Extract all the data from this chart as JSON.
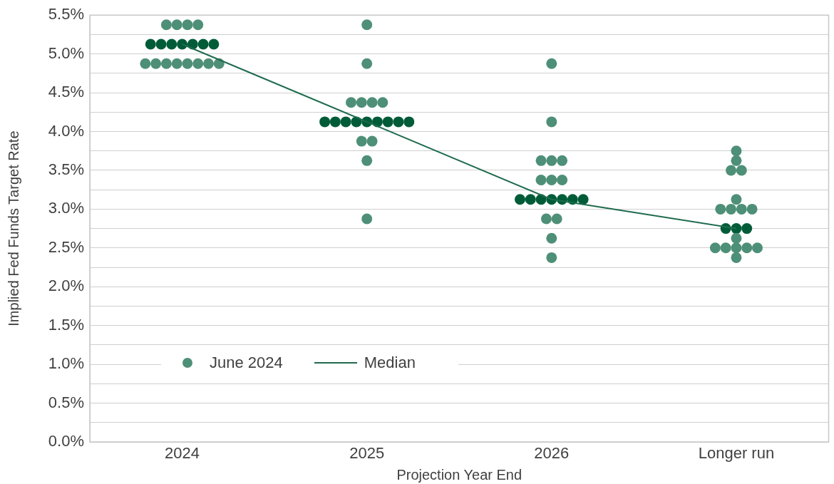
{
  "chart_data": {
    "type": "scatter",
    "xlabel": "Projection Year End",
    "ylabel": "Implied Fed Funds Target Rate",
    "categories": [
      "2024",
      "2025",
      "2026",
      "Longer run"
    ],
    "series": [
      {
        "name": "June 2024",
        "marker": "circle",
        "color": "#4e8f78",
        "values": [
          5.375,
          5.375,
          4.875,
          3.75
        ]
      },
      {
        "marker": "circle",
        "color": "#4e8f78",
        "values": [
          5.375,
          4.875,
          4.125,
          3.625
        ]
      },
      {
        "marker": "circle",
        "color": "#4e8f78",
        "values": [
          5.375,
          4.375,
          3.625,
          3.5
        ]
      },
      {
        "marker": "circle",
        "color": "#4e8f78",
        "values": [
          5.375,
          4.375,
          3.625,
          3.5
        ]
      },
      {
        "marker": "circle",
        "color": "#4e8f78",
        "values": [
          4.875,
          4.375,
          3.625,
          3.125
        ]
      },
      {
        "marker": "circle",
        "color": "#4e8f78",
        "values": [
          4.875,
          4.375,
          3.375,
          3.0
        ]
      },
      {
        "marker": "circle",
        "color": "#4e8f78",
        "values": [
          4.875,
          3.875,
          3.375,
          3.0
        ]
      },
      {
        "marker": "circle",
        "color": "#4e8f78",
        "values": [
          4.875,
          3.875,
          3.375,
          3.0
        ]
      },
      {
        "marker": "circle",
        "color": "#4e8f78",
        "values": [
          4.875,
          3.625,
          2.875,
          3.0
        ]
      },
      {
        "marker": "circle",
        "color": "#4e8f78",
        "values": [
          4.875,
          2.875,
          2.875,
          2.625
        ]
      },
      {
        "marker": "circle",
        "color": "#4e8f78",
        "values": [
          4.875,
          null,
          2.625,
          2.5
        ]
      },
      {
        "marker": "circle",
        "color": "#4e8f78",
        "values": [
          4.875,
          null,
          2.375,
          2.5
        ]
      },
      {
        "marker": "circle",
        "color": "#4e8f78",
        "values": [
          null,
          null,
          null,
          2.5
        ]
      },
      {
        "marker": "circle",
        "color": "#4e8f78",
        "values": [
          null,
          null,
          null,
          2.5
        ]
      },
      {
        "marker": "circle",
        "color": "#4e8f78",
        "values": [
          null,
          null,
          null,
          2.5
        ]
      },
      {
        "marker": "circle",
        "color": "#4e8f78",
        "values": [
          null,
          null,
          null,
          2.375
        ]
      },
      {
        "marker": "circle",
        "color": "#005c38",
        "values": [
          5.125,
          4.125,
          3.125,
          2.75
        ]
      },
      {
        "marker": "circle",
        "color": "#005c38",
        "values": [
          5.125,
          4.125,
          3.125,
          2.75
        ]
      },
      {
        "marker": "circle",
        "color": "#005c38",
        "values": [
          5.125,
          4.125,
          3.125,
          2.75
        ]
      },
      {
        "marker": "circle",
        "color": "#005c38",
        "values": [
          5.125,
          4.125,
          3.125,
          null
        ]
      },
      {
        "marker": "circle",
        "color": "#005c38",
        "values": [
          5.125,
          4.125,
          3.125,
          null
        ]
      },
      {
        "marker": "circle",
        "color": "#005c38",
        "values": [
          5.125,
          4.125,
          3.125,
          null
        ]
      },
      {
        "marker": "circle",
        "color": "#005c38",
        "values": [
          5.125,
          4.125,
          3.125,
          null
        ]
      },
      {
        "marker": "circle",
        "color": "#005c38",
        "values": [
          null,
          4.125,
          null,
          null
        ]
      },
      {
        "marker": "circle",
        "color": "#005c38",
        "values": [
          null,
          4.125,
          null,
          null
        ]
      },
      {
        "name": "Median",
        "type": "line",
        "color": "#1f6b4e",
        "values": [
          5.125,
          4.125,
          3.125,
          2.75
        ]
      }
    ],
    "ylim": [
      0,
      5.5
    ],
    "yticks": [
      {
        "value": 0,
        "label": "0.0%"
      },
      {
        "value": 0.25,
        "label": null
      },
      {
        "value": 0.5,
        "label": "0.5%"
      },
      {
        "value": 0.75,
        "label": null
      },
      {
        "value": 1,
        "label": "1.0%"
      },
      {
        "value": 1.25,
        "label": null
      },
      {
        "value": 1.5,
        "label": "1.5%"
      },
      {
        "value": 1.75,
        "label": null
      },
      {
        "value": 2,
        "label": "2.0%"
      },
      {
        "value": 2.25,
        "label": null
      },
      {
        "value": 2.5,
        "label": "2.5%"
      },
      {
        "value": 2.75,
        "label": null
      },
      {
        "value": 3,
        "label": "3.0%"
      },
      {
        "value": 3.25,
        "label": null
      },
      {
        "value": 3.5,
        "label": "3.5%"
      },
      {
        "value": 3.75,
        "label": null
      },
      {
        "value": 4,
        "label": "4.0%"
      },
      {
        "value": 4.25,
        "label": null
      },
      {
        "value": 4.5,
        "label": "4.5%"
      },
      {
        "value": 4.75,
        "label": null
      },
      {
        "value": 5,
        "label": "5.0%"
      },
      {
        "value": 5.25,
        "label": null
      },
      {
        "value": 5.5,
        "label": "5.5%"
      }
    ],
    "grid": "y",
    "legend": "bottom left"
  }
}
